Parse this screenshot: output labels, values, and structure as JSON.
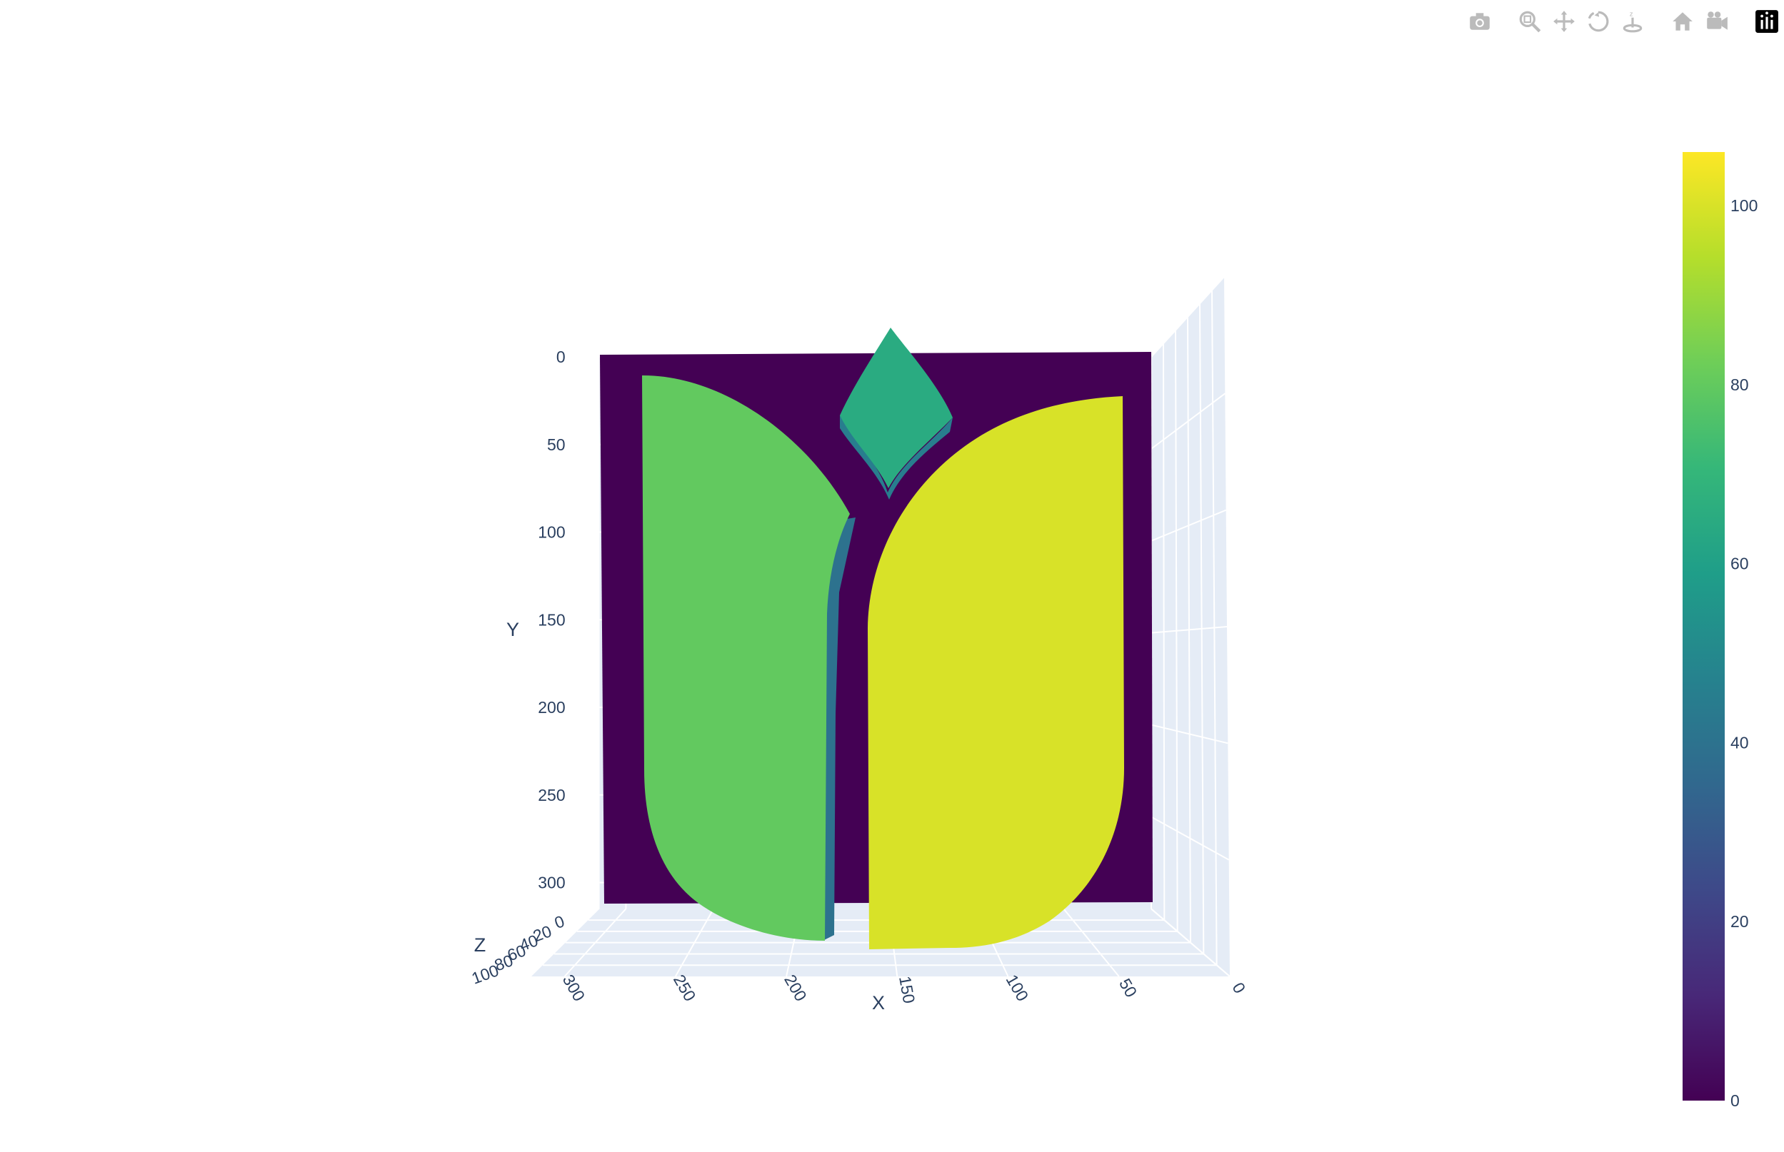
{
  "modebar": {
    "buttons": [
      {
        "name": "camera-icon"
      },
      {
        "name": "zoom-icon"
      },
      {
        "name": "pan-icon"
      },
      {
        "name": "orbit-icon"
      },
      {
        "name": "turntable-icon"
      },
      {
        "name": "home-icon"
      },
      {
        "name": "camera-view-icon"
      },
      {
        "name": "plotly-logo-icon"
      }
    ]
  },
  "chart_data": {
    "type": "surface",
    "colorscale": "Viridis",
    "colorscale_stops": [
      "#440154",
      "#482878",
      "#3e4989",
      "#31688e",
      "#26828e",
      "#1f9e89",
      "#35b779",
      "#6ece58",
      "#b5de2b",
      "#fde725"
    ],
    "scene": {
      "x_axis": {
        "title": "X",
        "ticks": [
          "300",
          "250",
          "200",
          "150",
          "100",
          "50",
          "0"
        ],
        "range": [
          0,
          315
        ]
      },
      "y_axis": {
        "title": "Y",
        "ticks": [
          "0",
          "50",
          "100",
          "150",
          "200",
          "250",
          "300"
        ],
        "range": [
          0,
          315
        ]
      },
      "z_axis": {
        "title": "Z",
        "ticks": [
          "0",
          "20",
          "40",
          "60",
          "80",
          "100"
        ],
        "range": [
          0,
          105
        ]
      },
      "grid": true,
      "background": "#e5ecf6"
    },
    "regions": [
      {
        "name": "background",
        "z": 0
      },
      {
        "name": "left leaf",
        "z": 80
      },
      {
        "name": "right leaf",
        "z": 100
      },
      {
        "name": "diamond",
        "z": 65
      }
    ],
    "colorbar": {
      "ticks": [
        "0",
        "20",
        "40",
        "60",
        "80",
        "100"
      ],
      "range": [
        0,
        106
      ]
    }
  }
}
